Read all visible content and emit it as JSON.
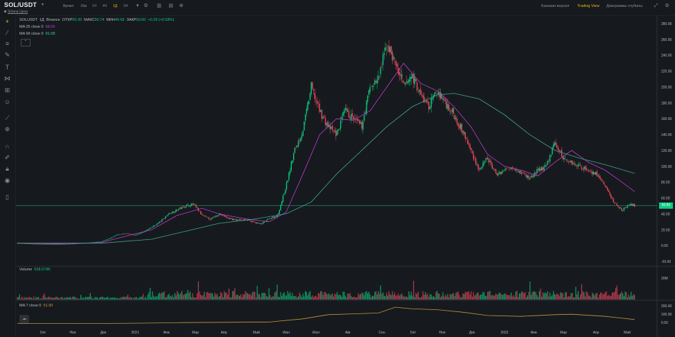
{
  "header": {
    "pair": "SOL/USDT",
    "pair_sub": "Solana Цена",
    "timeframes": [
      {
        "label": "Время",
        "active": false
      },
      {
        "label": "15м",
        "active": false
      },
      {
        "label": "1Ч",
        "active": false
      },
      {
        "label": "4Ч",
        "active": false
      },
      {
        "label": "1Д",
        "active": true
      },
      {
        "label": "1Н",
        "active": false
      }
    ],
    "views": [
      {
        "label": "Базовая версия",
        "active": false
      },
      {
        "label": "Trading View",
        "active": true
      },
      {
        "label": "Диаграммы глубины",
        "active": false
      }
    ]
  },
  "legend": {
    "symbol": "SOLUSDT",
    "interval": "1Д",
    "exchange": "Binance",
    "open_label": "ОТКР",
    "open": "50.30",
    "high_label": "МАКС",
    "high": "50.74",
    "low_label": "МИН",
    "low": "49.69",
    "close_label": "ЗАКР",
    "close": "50.60",
    "change": "+0.29 (+0.58%)",
    "ma25_label": "MA 25 close 0",
    "ma25_value": "68.05",
    "ma99_label": "MA 99 close 0",
    "ma99_value": "91.08",
    "volume_label": "Volume",
    "volume_value": "528.579K",
    "ma7_label": "MA 7 close 0",
    "ma7_value": "51.90"
  },
  "colors": {
    "up": "#0ecb81",
    "down": "#f6465d",
    "ma25": "#c43ad6",
    "ma99": "#3fa98f",
    "ma7": "#c9963b",
    "price_line": "#0ecb81"
  },
  "chart_data": {
    "type": "candlestick",
    "price_axis_ticks": [
      "280.00",
      "260.00",
      "240.00",
      "220.00",
      "200.00",
      "180.00",
      "160.00",
      "140.00",
      "120.00",
      "100.00",
      "80.00",
      "60.00",
      "40.00",
      "20.00",
      "0.00",
      "-20.00"
    ],
    "price_ylim": [
      -20,
      280
    ],
    "last_price": "50.60",
    "volume_axis_ticks": [
      "20M"
    ],
    "volume_ma_axis_ticks": [
      "200.00",
      "100.00",
      "0.00"
    ],
    "x_tick_labels": [
      "Окт",
      "Ноя",
      "Дек",
      "2021",
      "Фев",
      "Мар",
      "Апр",
      "Май",
      "Июн",
      "Июл",
      "Авг",
      "Сен",
      "Окт",
      "Ноя",
      "Дек",
      "2022",
      "Фев",
      "Мар",
      "Апр",
      "Май"
    ],
    "close_path": [
      [
        0,
        3
      ],
      [
        10,
        2.5
      ],
      [
        20,
        2
      ],
      [
        30,
        1.8
      ],
      [
        40,
        1.5
      ],
      [
        50,
        1.6
      ],
      [
        60,
        2
      ],
      [
        70,
        2.5
      ],
      [
        80,
        3
      ],
      [
        90,
        4
      ],
      [
        100,
        5
      ],
      [
        110,
        9
      ],
      [
        120,
        14
      ],
      [
        130,
        15
      ],
      [
        140,
        13
      ],
      [
        150,
        17
      ],
      [
        160,
        23
      ],
      [
        170,
        30
      ],
      [
        180,
        40
      ],
      [
        190,
        45
      ],
      [
        200,
        50
      ],
      [
        210,
        52
      ],
      [
        220,
        38
      ],
      [
        230,
        33
      ],
      [
        240,
        40
      ],
      [
        250,
        35
      ],
      [
        260,
        32
      ],
      [
        270,
        33
      ],
      [
        280,
        30
      ],
      [
        290,
        27
      ],
      [
        300,
        34
      ],
      [
        310,
        38
      ],
      [
        320,
        75
      ],
      [
        330,
        120
      ],
      [
        340,
        145
      ],
      [
        350,
        200
      ],
      [
        360,
        170
      ],
      [
        370,
        150
      ],
      [
        380,
        140
      ],
      [
        390,
        170
      ],
      [
        400,
        160
      ],
      [
        410,
        150
      ],
      [
        420,
        200
      ],
      [
        430,
        210
      ],
      [
        440,
        255
      ],
      [
        450,
        230
      ],
      [
        460,
        200
      ],
      [
        470,
        215
      ],
      [
        480,
        190
      ],
      [
        490,
        175
      ],
      [
        500,
        195
      ],
      [
        510,
        180
      ],
      [
        520,
        165
      ],
      [
        530,
        145
      ],
      [
        540,
        120
      ],
      [
        550,
        95
      ],
      [
        560,
        110
      ],
      [
        570,
        90
      ],
      [
        580,
        95
      ],
      [
        590,
        100
      ],
      [
        600,
        92
      ],
      [
        610,
        85
      ],
      [
        620,
        95
      ],
      [
        630,
        100
      ],
      [
        640,
        130
      ],
      [
        650,
        110
      ],
      [
        660,
        105
      ],
      [
        670,
        100
      ],
      [
        680,
        95
      ],
      [
        690,
        90
      ],
      [
        700,
        75
      ],
      [
        710,
        55
      ],
      [
        720,
        45
      ],
      [
        730,
        52
      ],
      [
        735,
        50.6
      ]
    ],
    "ma25_path": [
      [
        0,
        3
      ],
      [
        60,
        2
      ],
      [
        100,
        4
      ],
      [
        130,
        12
      ],
      [
        160,
        20
      ],
      [
        190,
        38
      ],
      [
        220,
        47
      ],
      [
        240,
        40
      ],
      [
        270,
        34
      ],
      [
        300,
        30
      ],
      [
        320,
        42
      ],
      [
        340,
        90
      ],
      [
        360,
        140
      ],
      [
        380,
        160
      ],
      [
        400,
        158
      ],
      [
        420,
        170
      ],
      [
        440,
        200
      ],
      [
        460,
        230
      ],
      [
        480,
        205
      ],
      [
        500,
        195
      ],
      [
        520,
        175
      ],
      [
        540,
        150
      ],
      [
        560,
        115
      ],
      [
        580,
        100
      ],
      [
        600,
        95
      ],
      [
        620,
        88
      ],
      [
        640,
        105
      ],
      [
        660,
        120
      ],
      [
        680,
        105
      ],
      [
        700,
        95
      ],
      [
        720,
        80
      ],
      [
        735,
        68.05
      ]
    ],
    "ma99_path": [
      [
        0,
        3
      ],
      [
        100,
        3
      ],
      [
        160,
        8
      ],
      [
        200,
        18
      ],
      [
        240,
        28
      ],
      [
        280,
        33
      ],
      [
        320,
        40
      ],
      [
        350,
        55
      ],
      [
        380,
        90
      ],
      [
        410,
        120
      ],
      [
        440,
        150
      ],
      [
        470,
        175
      ],
      [
        500,
        190
      ],
      [
        520,
        192
      ],
      [
        550,
        185
      ],
      [
        580,
        165
      ],
      [
        610,
        140
      ],
      [
        640,
        120
      ],
      [
        670,
        110
      ],
      [
        700,
        102
      ],
      [
        735,
        91.08
      ]
    ],
    "volume_ma_path": [
      [
        0,
        3
      ],
      [
        100,
        4
      ],
      [
        150,
        8
      ],
      [
        200,
        15
      ],
      [
        250,
        18
      ],
      [
        300,
        22
      ],
      [
        340,
        60
      ],
      [
        370,
        110
      ],
      [
        400,
        120
      ],
      [
        430,
        130
      ],
      [
        450,
        200
      ],
      [
        470,
        180
      ],
      [
        500,
        170
      ],
      [
        530,
        140
      ],
      [
        560,
        100
      ],
      [
        600,
        90
      ],
      [
        640,
        110
      ],
      [
        660,
        115
      ],
      [
        700,
        90
      ],
      [
        735,
        51.9
      ]
    ]
  }
}
